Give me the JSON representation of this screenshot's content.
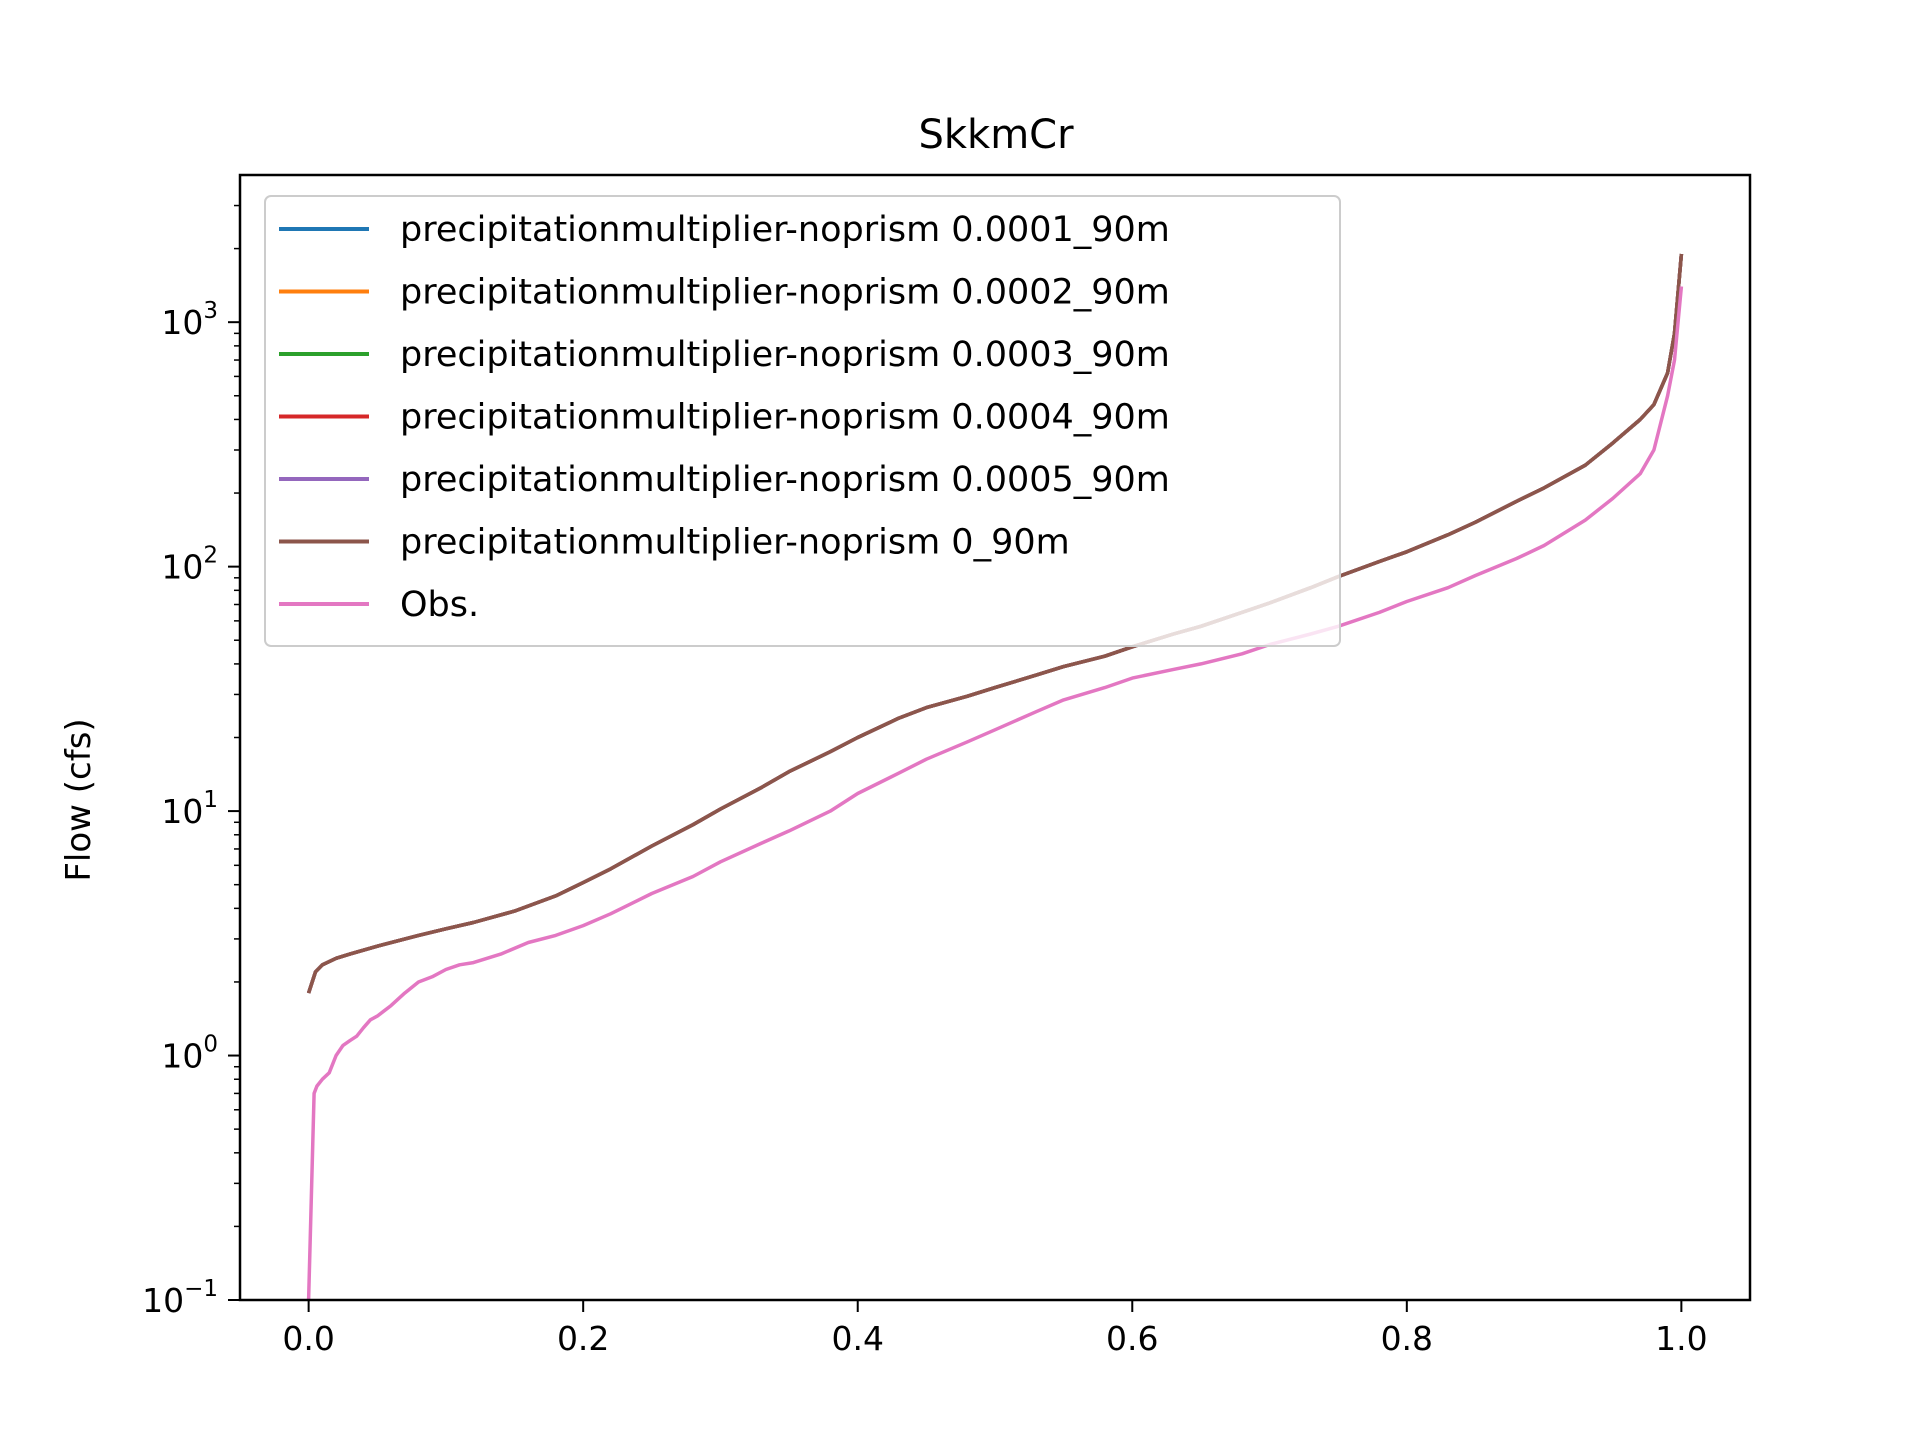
{
  "chart_data": {
    "type": "line",
    "title": "SkkmCr",
    "xlabel": "",
    "ylabel": "Flow (cfs)",
    "xlim": [
      -0.05,
      1.05
    ],
    "ylim": [
      0.1,
      4000
    ],
    "yscale": "log",
    "grid": false,
    "legend_position": "upper-left",
    "x_ticks": [
      {
        "value": 0.0,
        "label": "0.0"
      },
      {
        "value": 0.2,
        "label": "0.2"
      },
      {
        "value": 0.4,
        "label": "0.4"
      },
      {
        "value": 0.6,
        "label": "0.6"
      },
      {
        "value": 0.8,
        "label": "0.8"
      },
      {
        "value": 1.0,
        "label": "1.0"
      }
    ],
    "y_ticks": [
      {
        "value": 0.1,
        "base": "10",
        "exp": "−1"
      },
      {
        "value": 1,
        "base": "10",
        "exp": "0"
      },
      {
        "value": 10,
        "base": "10",
        "exp": "1"
      },
      {
        "value": 100,
        "base": "10",
        "exp": "2"
      },
      {
        "value": 1000,
        "base": "10",
        "exp": "3"
      }
    ],
    "series": [
      {
        "name": "precipitationmultiplier-noprism 0.0001_90m",
        "color": "#1f77b4",
        "data_ref": "sim"
      },
      {
        "name": "precipitationmultiplier-noprism 0.0002_90m",
        "color": "#ff7f0e",
        "data_ref": "sim"
      },
      {
        "name": "precipitationmultiplier-noprism 0.0003_90m",
        "color": "#2ca02c",
        "data_ref": "sim"
      },
      {
        "name": "precipitationmultiplier-noprism 0.0004_90m",
        "color": "#d62728",
        "data_ref": "sim"
      },
      {
        "name": "precipitationmultiplier-noprism 0.0005_90m",
        "color": "#9467bd",
        "data_ref": "sim"
      },
      {
        "name": "precipitationmultiplier-noprism 0_90m",
        "color": "#8c564b",
        "data_ref": "sim"
      },
      {
        "name": "Obs.",
        "color": "#e377c2",
        "data_ref": "obs"
      }
    ],
    "sim": {
      "x": [
        0,
        0.005,
        0.01,
        0.02,
        0.03,
        0.05,
        0.08,
        0.1,
        0.12,
        0.15,
        0.18,
        0.2,
        0.22,
        0.25,
        0.28,
        0.3,
        0.33,
        0.35,
        0.38,
        0.4,
        0.43,
        0.45,
        0.48,
        0.5,
        0.53,
        0.55,
        0.58,
        0.6,
        0.63,
        0.65,
        0.68,
        0.7,
        0.73,
        0.75,
        0.78,
        0.8,
        0.83,
        0.85,
        0.88,
        0.9,
        0.93,
        0.95,
        0.97,
        0.98,
        0.99,
        0.995,
        1.0
      ],
      "y": [
        1.8,
        2.2,
        2.35,
        2.5,
        2.6,
        2.8,
        3.1,
        3.3,
        3.5,
        3.9,
        4.5,
        5.1,
        5.8,
        7.2,
        8.8,
        10.2,
        12.5,
        14.5,
        17.5,
        20,
        24,
        26.5,
        29.5,
        32,
        36,
        39,
        43,
        47,
        53,
        57,
        65,
        71,
        82,
        91,
        105,
        115,
        135,
        152,
        185,
        210,
        260,
        320,
        400,
        460,
        620,
        900,
        1900
      ]
    },
    "obs": {
      "x": [
        0,
        0.004,
        0.006,
        0.01,
        0.015,
        0.02,
        0.025,
        0.03,
        0.035,
        0.04,
        0.045,
        0.05,
        0.06,
        0.07,
        0.08,
        0.09,
        0.1,
        0.11,
        0.12,
        0.14,
        0.16,
        0.18,
        0.2,
        0.22,
        0.25,
        0.28,
        0.3,
        0.33,
        0.35,
        0.38,
        0.4,
        0.43,
        0.45,
        0.48,
        0.5,
        0.53,
        0.55,
        0.58,
        0.6,
        0.63,
        0.65,
        0.68,
        0.7,
        0.73,
        0.75,
        0.78,
        0.8,
        0.83,
        0.85,
        0.88,
        0.9,
        0.93,
        0.95,
        0.97,
        0.98,
        0.99,
        0.995,
        1.0
      ],
      "y": [
        0.1,
        0.7,
        0.75,
        0.8,
        0.85,
        1.0,
        1.1,
        1.15,
        1.2,
        1.3,
        1.4,
        1.45,
        1.6,
        1.8,
        2.0,
        2.1,
        2.25,
        2.35,
        2.4,
        2.6,
        2.9,
        3.1,
        3.4,
        3.8,
        4.6,
        5.4,
        6.2,
        7.4,
        8.3,
        10,
        11.8,
        14.3,
        16.3,
        19.2,
        21.5,
        25.5,
        28.5,
        32,
        35,
        38,
        40,
        44,
        48,
        53,
        57,
        65,
        72,
        82,
        92,
        108,
        122,
        155,
        190,
        240,
        300,
        500,
        700,
        1400
      ]
    }
  }
}
